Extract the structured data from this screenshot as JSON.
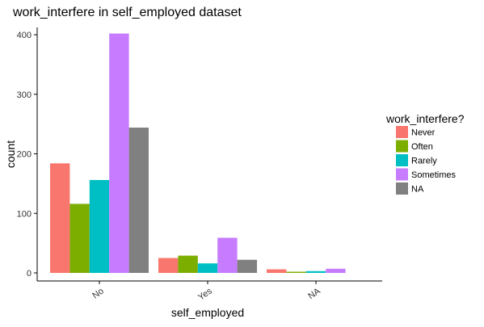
{
  "chart_data": {
    "type": "bar",
    "title": "work_interfere in self_employed dataset",
    "xlabel": "self_employed",
    "ylabel": "count",
    "categories": [
      "No",
      "Yes",
      "NA"
    ],
    "ylim": [
      0,
      420
    ],
    "yticks": [
      0,
      100,
      200,
      300,
      400
    ],
    "grid": false,
    "legend": {
      "title": "work_interfere?",
      "position": "right"
    },
    "series": [
      {
        "name": "Never",
        "color": "#F8766D",
        "values": [
          184,
          25,
          6
        ]
      },
      {
        "name": "Often",
        "color": "#7CAE00",
        "values": [
          116,
          29,
          2
        ]
      },
      {
        "name": "Rarely",
        "color": "#00BFC4",
        "values": [
          156,
          16,
          3
        ]
      },
      {
        "name": "Sometimes",
        "color": "#C77CFF",
        "values": [
          402,
          59,
          7
        ]
      },
      {
        "name": "NA",
        "color": "#808080",
        "values": [
          244,
          22,
          null
        ]
      }
    ]
  }
}
